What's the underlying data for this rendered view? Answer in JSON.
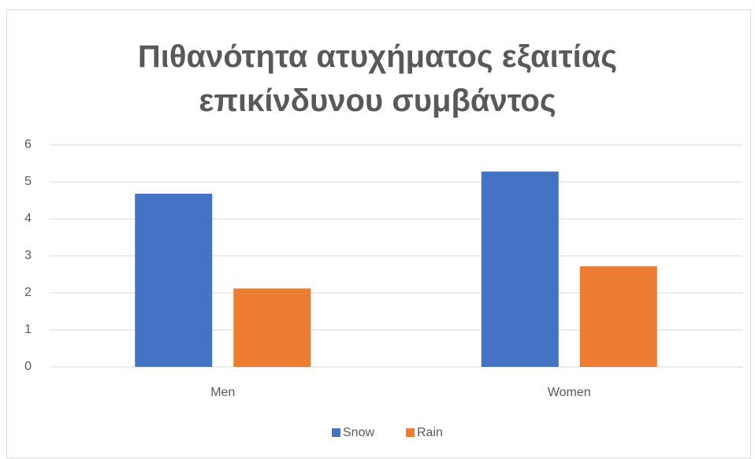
{
  "chart_data": {
    "type": "bar",
    "title": "Πιθανότητα ατυχήματος εξαιτίας επικίνδυνου συμβάντος",
    "categories": [
      "Men",
      "Women"
    ],
    "series": [
      {
        "name": "Snow",
        "color": "#4472c4",
        "values": [
          4.68,
          5.28
        ]
      },
      {
        "name": "Rain",
        "color": "#ed7d31",
        "values": [
          2.12,
          2.72
        ]
      }
    ],
    "ylim": [
      0,
      6
    ],
    "yticks": [
      0,
      1,
      2,
      3,
      4,
      5,
      6
    ],
    "grid": true,
    "legend": "bottom"
  }
}
